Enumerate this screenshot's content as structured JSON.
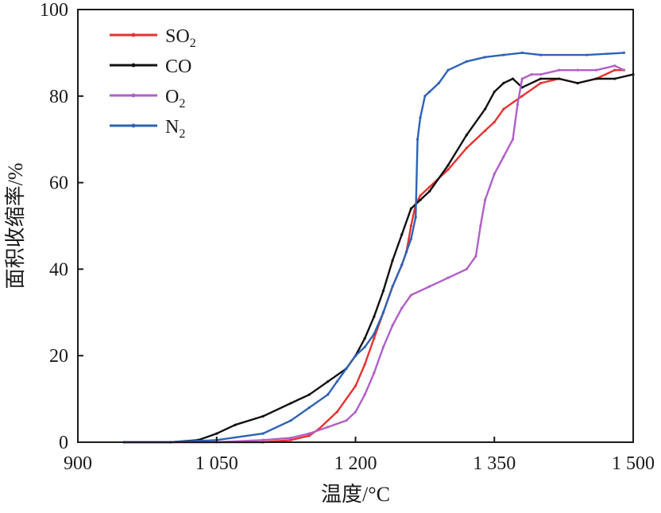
{
  "chart_data": {
    "type": "line",
    "title": "",
    "xlabel": "温度/°C",
    "ylabel": "面积收缩率/%",
    "xlim": [
      900,
      1500
    ],
    "ylim": [
      0,
      100
    ],
    "xticks": [
      900,
      1050,
      1200,
      1350,
      1500
    ],
    "xtick_labels": [
      "900",
      "1 050",
      "1 200",
      "1 350",
      "1 500"
    ],
    "yticks": [
      0,
      20,
      40,
      60,
      80,
      100
    ],
    "ytick_labels": [
      "0",
      "20",
      "40",
      "60",
      "80",
      "100"
    ],
    "grid": false,
    "legend_position": "top-left",
    "series": [
      {
        "name": "SO2",
        "label_main": "SO",
        "label_sub": "2",
        "color": "#e8312f",
        "x": [
          950,
          1000,
          1050,
          1100,
          1130,
          1150,
          1160,
          1180,
          1200,
          1210,
          1220,
          1230,
          1240,
          1250,
          1255,
          1260,
          1265,
          1270,
          1280,
          1300,
          1320,
          1340,
          1350,
          1360,
          1380,
          1400,
          1420,
          1440,
          1460,
          1480,
          1490
        ],
        "values": [
          0,
          0,
          0,
          0,
          0.5,
          1.5,
          3,
          7,
          13,
          18,
          24,
          30,
          36,
          41,
          44,
          50,
          55,
          57,
          59,
          63,
          68,
          72,
          74,
          77,
          80,
          83,
          84,
          83,
          84,
          86,
          86
        ]
      },
      {
        "name": "CO",
        "label_main": "CO",
        "label_sub": "",
        "color": "#111111",
        "x": [
          950,
          1000,
          1030,
          1050,
          1070,
          1100,
          1130,
          1150,
          1170,
          1190,
          1200,
          1210,
          1220,
          1230,
          1240,
          1250,
          1260,
          1270,
          1280,
          1300,
          1320,
          1340,
          1350,
          1360,
          1370,
          1380,
          1400,
          1420,
          1440,
          1460,
          1480,
          1500
        ],
        "values": [
          0,
          0,
          0.5,
          2,
          4,
          6,
          9,
          11,
          14,
          17,
          20,
          24,
          29,
          35,
          42,
          48,
          54,
          56,
          58,
          64,
          71,
          77,
          81,
          83,
          84,
          82,
          84,
          84,
          83,
          84,
          84,
          85
        ]
      },
      {
        "name": "O2",
        "label_main": "O",
        "label_sub": "2",
        "color": "#b05fc8",
        "x": [
          950,
          1000,
          1050,
          1100,
          1130,
          1150,
          1170,
          1190,
          1200,
          1210,
          1220,
          1230,
          1240,
          1250,
          1260,
          1280,
          1300,
          1320,
          1330,
          1335,
          1340,
          1350,
          1360,
          1370,
          1375,
          1380,
          1390,
          1400,
          1420,
          1440,
          1460,
          1480,
          1490
        ],
        "values": [
          0,
          0,
          0,
          0.5,
          1,
          2,
          3.5,
          5,
          7,
          11,
          16,
          22,
          27,
          31,
          34,
          36,
          38,
          40,
          43,
          50,
          56,
          62,
          66,
          70,
          78,
          84,
          85,
          85,
          86,
          86,
          86,
          87,
          86
        ]
      },
      {
        "name": "N2",
        "label_main": "N",
        "label_sub": "2",
        "color": "#2e63b5",
        "x": [
          950,
          1000,
          1050,
          1100,
          1130,
          1150,
          1170,
          1180,
          1190,
          1200,
          1210,
          1220,
          1230,
          1240,
          1250,
          1255,
          1260,
          1265,
          1267,
          1270,
          1275,
          1280,
          1290,
          1300,
          1320,
          1340,
          1360,
          1380,
          1400,
          1450,
          1490
        ],
        "values": [
          0,
          0,
          0.5,
          2,
          5,
          8,
          11,
          14,
          17,
          20,
          22,
          25,
          30,
          36,
          41,
          44,
          47,
          52,
          70,
          75,
          80,
          81,
          83,
          86,
          88,
          89,
          89.5,
          90,
          89.5,
          89.5,
          90
        ]
      }
    ]
  }
}
